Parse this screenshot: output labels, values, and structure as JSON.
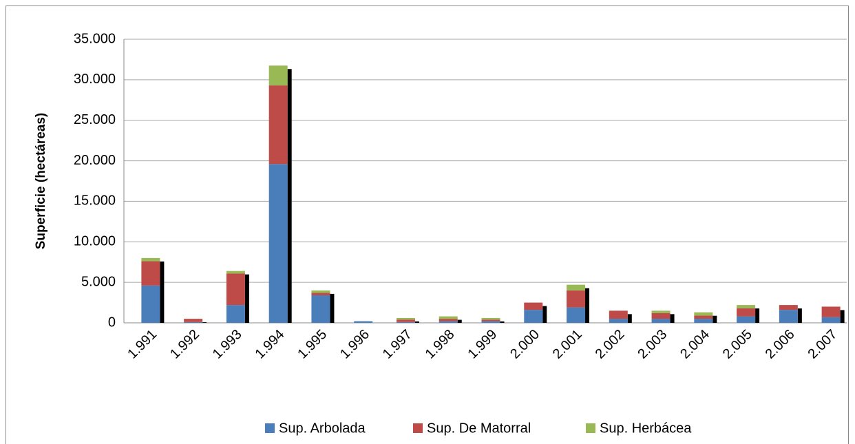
{
  "chart_data": {
    "type": "bar",
    "stacked": true,
    "y_label": "Superficie (hectáreas)",
    "categories": [
      "1.991",
      "1.992",
      "1.993",
      "1.994",
      "1.995",
      "1.996",
      "1.997",
      "1.998",
      "1.999",
      "2.000",
      "2.001",
      "2.002",
      "2.003",
      "2.004",
      "2.005",
      "2.006",
      "2.007"
    ],
    "series": [
      {
        "name": "Sup. Arbolada",
        "color": "#4a7ebb",
        "values": [
          4600,
          100,
          2200,
          19600,
          3400,
          200,
          100,
          200,
          200,
          1600,
          1900,
          500,
          500,
          500,
          800,
          1600,
          700
        ]
      },
      {
        "name": "Sup. De Matorral",
        "color": "#be4b48",
        "values": [
          3000,
          400,
          3900,
          9700,
          300,
          0,
          300,
          300,
          200,
          900,
          2100,
          1000,
          700,
          400,
          1000,
          600,
          1300
        ]
      },
      {
        "name": "Sup. Herbácea",
        "color": "#98b954",
        "values": [
          400,
          0,
          300,
          2450,
          300,
          0,
          200,
          300,
          200,
          0,
          700,
          0,
          300,
          400,
          400,
          0,
          0
        ]
      }
    ],
    "ylim": [
      0,
      35000
    ],
    "yticks": [
      0,
      {
        "value": 5000,
        "label": "5.000"
      },
      {
        "value": 10000,
        "label": "10.000"
      },
      {
        "value": 15000,
        "label": "15.000"
      },
      {
        "value": 20000,
        "label": "20.000"
      },
      {
        "value": 25000,
        "label": "25.000"
      },
      {
        "value": 30000,
        "label": "30.000"
      },
      {
        "value": 35000,
        "label": "35.000"
      }
    ],
    "grid": true,
    "legend": "bottom"
  }
}
